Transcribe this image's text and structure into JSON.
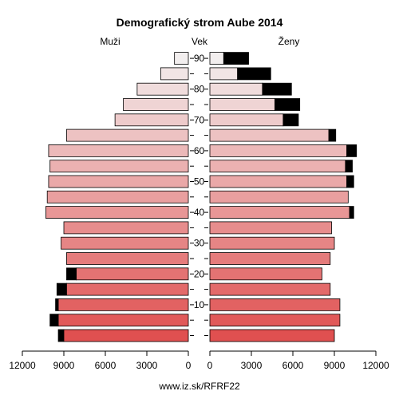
{
  "chart_data": {
    "type": "bar",
    "title": "Demografický strom Aube 2014",
    "left_label": "Muži",
    "center_label": "Vek",
    "right_label": "Ženy",
    "footer": "www.iz.sk/RFRF22",
    "age_groups": [
      "0-4",
      "5-9",
      "10-14",
      "15-19",
      "20-24",
      "25-29",
      "30-34",
      "35-39",
      "40-44",
      "45-49",
      "50-54",
      "55-59",
      "60-64",
      "65-69",
      "70-74",
      "75-79",
      "80-84",
      "85-89",
      "90+"
    ],
    "age_ticks": [
      "10",
      "20",
      "30",
      "40",
      "50",
      "60",
      "70",
      "80",
      "90"
    ],
    "x_ticks_left": [
      "12000",
      "9000",
      "6000",
      "3000",
      "0"
    ],
    "x_ticks_right": [
      "0",
      "3000",
      "6000",
      "9000",
      "12000"
    ],
    "xlim": [
      0,
      12000
    ],
    "series": [
      {
        "name": "Muži",
        "values": [
          9400,
          10000,
          9600,
          9500,
          8800,
          8800,
          9200,
          9000,
          10300,
          10200,
          10100,
          10000,
          10100,
          8800,
          5300,
          4700,
          3700,
          2000,
          1000
        ],
        "excess": [
          400,
          600,
          200,
          700,
          700,
          0,
          0,
          0,
          0,
          0,
          0,
          0,
          0,
          0,
          0,
          0,
          0,
          0,
          0
        ]
      },
      {
        "name": "Ženy",
        "values": [
          9000,
          9400,
          9400,
          8700,
          8100,
          8700,
          9000,
          8800,
          10400,
          10000,
          10400,
          10300,
          10600,
          9100,
          6400,
          6500,
          5900,
          4400,
          2800
        ],
        "excess": [
          0,
          0,
          0,
          0,
          0,
          0,
          0,
          0,
          300,
          0,
          500,
          500,
          700,
          500,
          1100,
          1800,
          2100,
          2400,
          1800
        ]
      }
    ],
    "colors": {
      "young": "#e05050",
      "old": "#f2eeee",
      "excess": "#000000",
      "stroke": "#000000"
    }
  }
}
